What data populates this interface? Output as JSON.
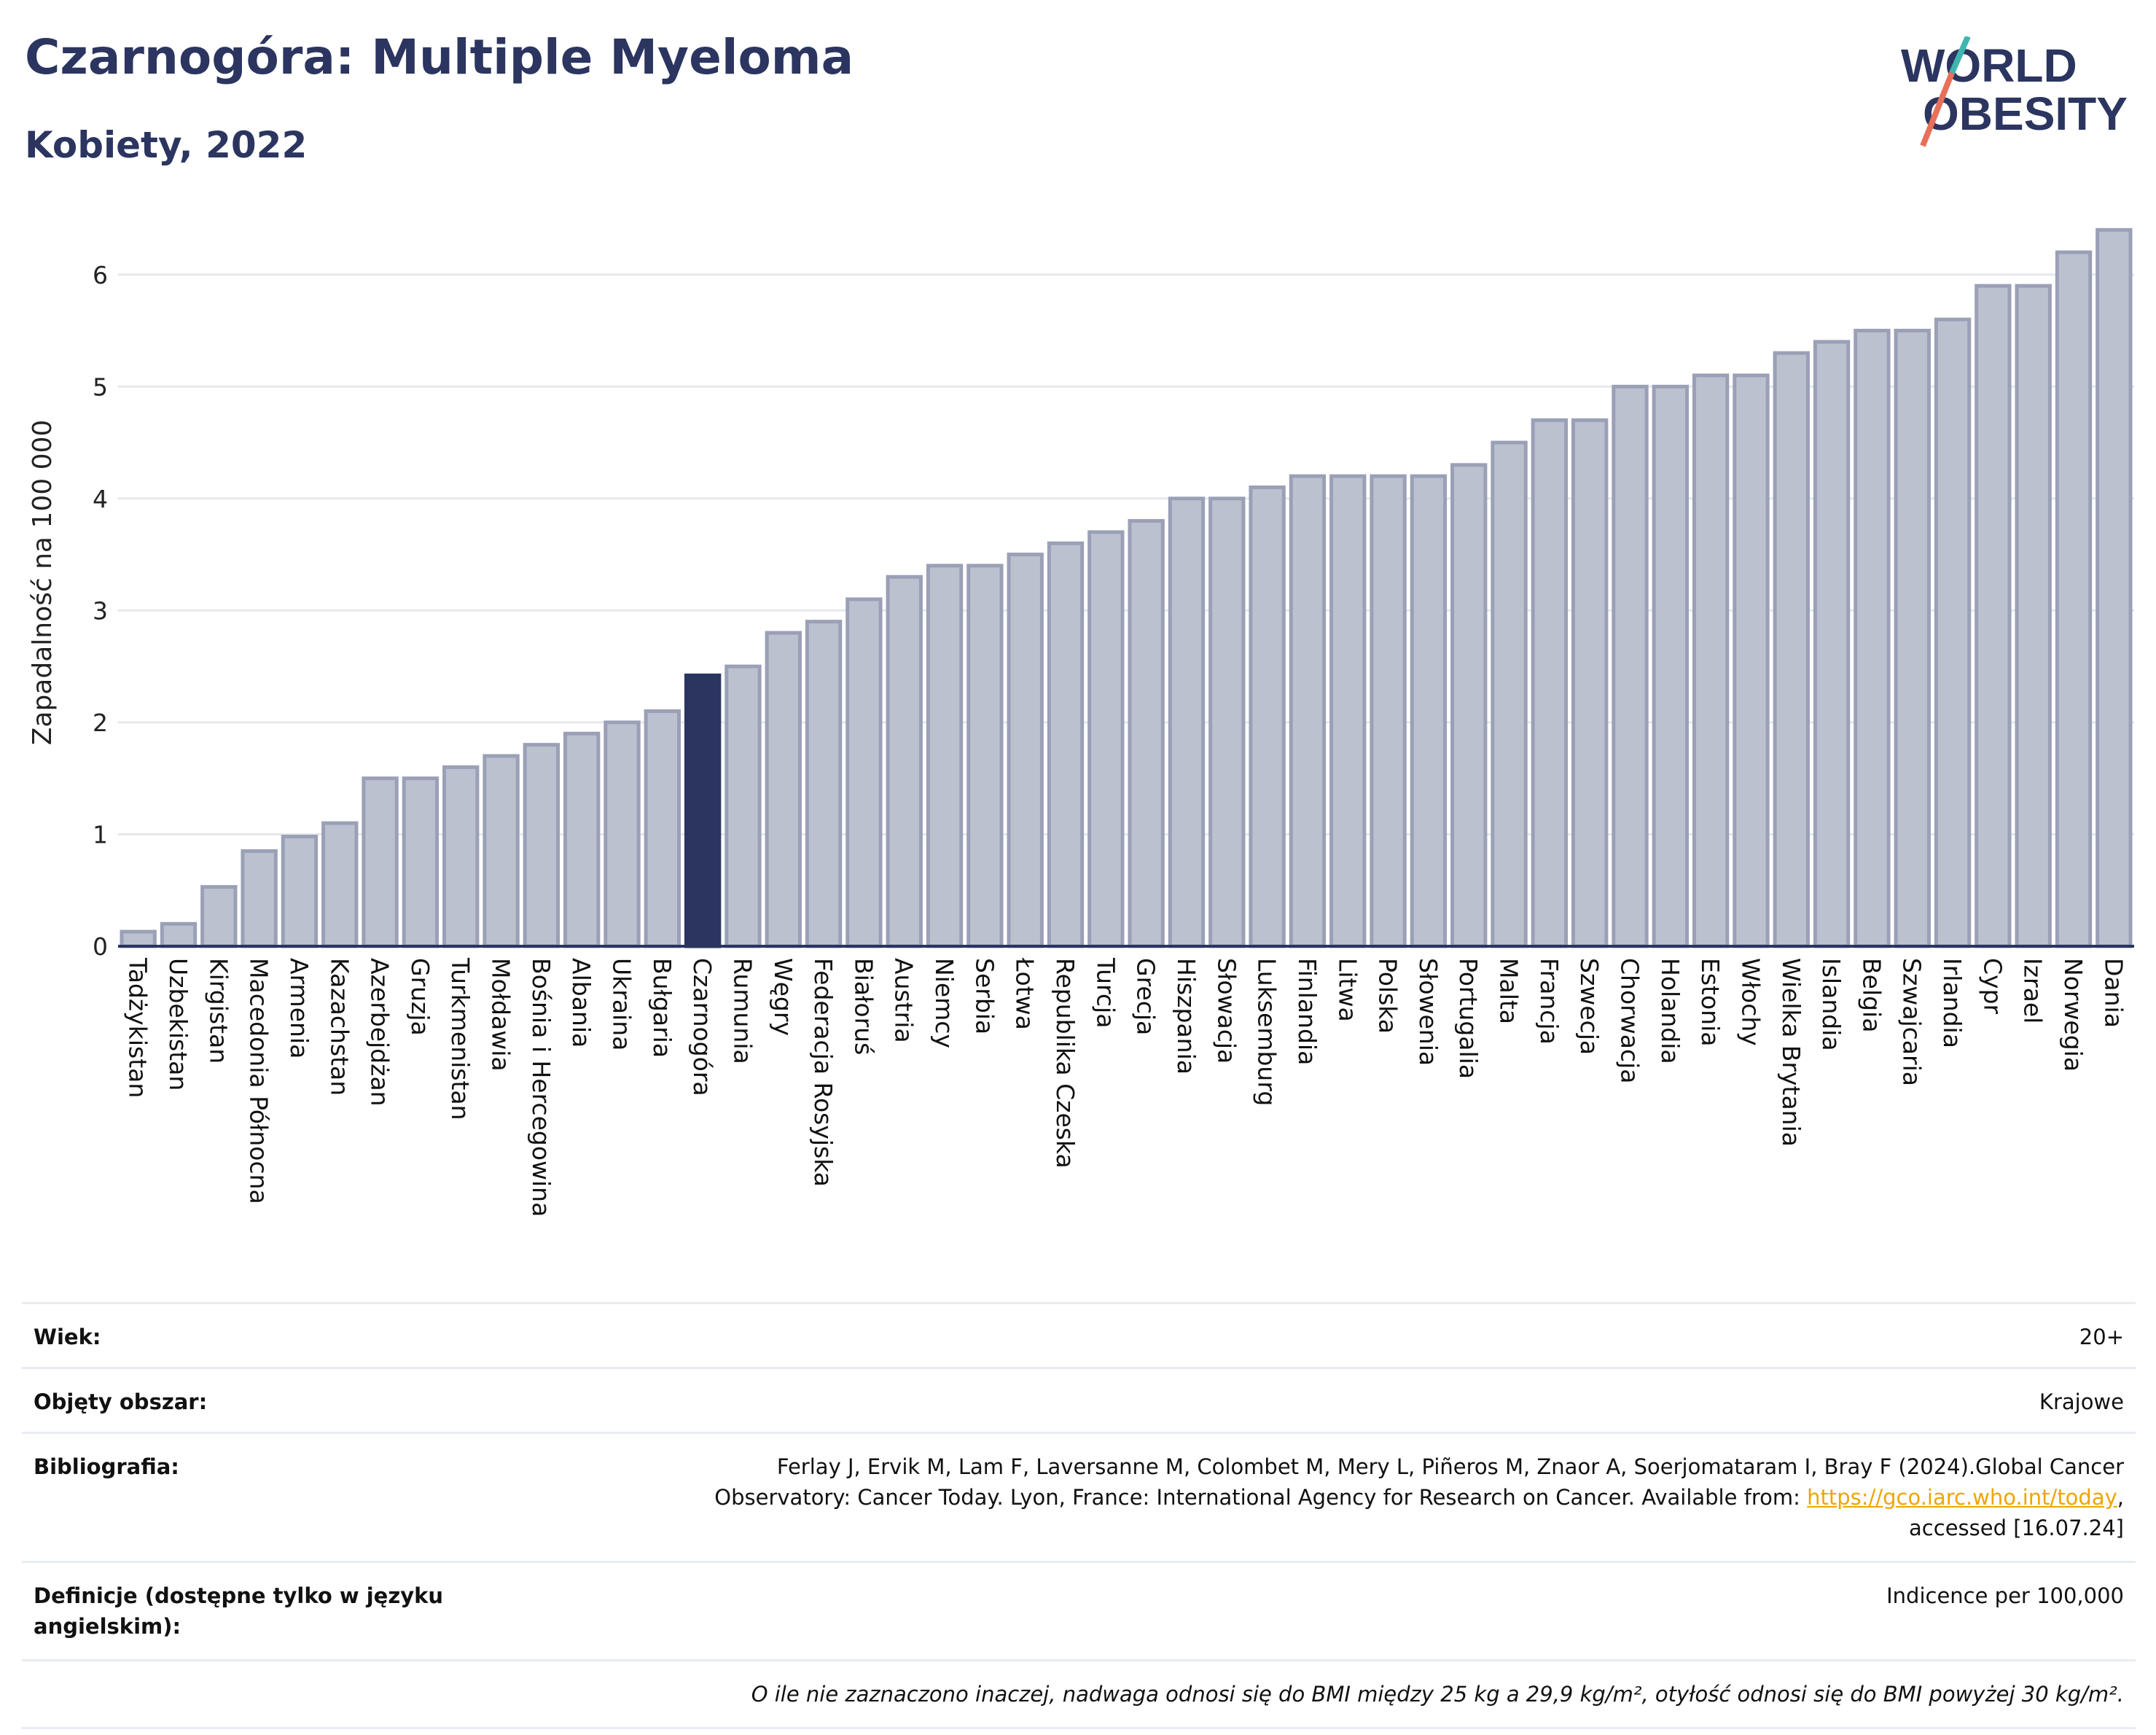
{
  "header": {
    "title": "Czarnogóra: Multiple Myeloma",
    "subtitle": "Kobiety, 2022"
  },
  "logo": {
    "line1": "WORLD",
    "line2": "OBESITY",
    "icon": "world-obesity-logo"
  },
  "colors": {
    "highlight": "#2b3560",
    "bar": "#bcc1d0",
    "bar_stroke": "#9aa0b6",
    "accent": "#2b3560"
  },
  "chart_data": {
    "type": "bar",
    "ylabel": "Zapadalność na 100 000",
    "ylim": [
      0,
      6.5
    ],
    "yticks": [
      0,
      1,
      2,
      3,
      4,
      5,
      6
    ],
    "grid": true,
    "highlight": "Czarnogóra",
    "categories": [
      "Tadżykistan",
      "Uzbekistan",
      "Kirgistan",
      "Macedonia Północna",
      "Armenia",
      "Kazachstan",
      "Azerbejdżan",
      "Gruzja",
      "Turkmenistan",
      "Mołdawia",
      "Bośnia i Hercegowina",
      "Albania",
      "Ukraina",
      "Bułgaria",
      "Czarnogóra",
      "Rumunia",
      "Węgry",
      "Federacja Rosyjska",
      "Białoruś",
      "Austria",
      "Niemcy",
      "Serbia",
      "Łotwa",
      "Republika Czeska",
      "Turcja",
      "Grecja",
      "Hiszpania",
      "Słowacja",
      "Luksemburg",
      "Finlandia",
      "Litwa",
      "Polska",
      "Słowenia",
      "Portugalia",
      "Malta",
      "Francja",
      "Szwecja",
      "Chorwacja",
      "Holandia",
      "Estonia",
      "Włochy",
      "Wielka Brytania",
      "Islandia",
      "Belgia",
      "Szwajcaria",
      "Irlandia",
      "Cypr",
      "Izrael",
      "Norwegia",
      "Dania"
    ],
    "values": [
      0.13,
      0.2,
      0.53,
      0.85,
      0.98,
      1.1,
      1.5,
      1.5,
      1.6,
      1.7,
      1.8,
      1.9,
      2.0,
      2.1,
      2.42,
      2.5,
      2.8,
      2.9,
      3.1,
      3.3,
      3.4,
      3.4,
      3.5,
      3.6,
      3.7,
      3.8,
      4.0,
      4.0,
      4.1,
      4.2,
      4.2,
      4.2,
      4.2,
      4.3,
      4.5,
      4.7,
      4.7,
      5.0,
      5.0,
      5.1,
      5.1,
      5.3,
      5.4,
      5.5,
      5.5,
      5.6,
      5.9,
      5.9,
      6.2,
      6.4
    ]
  },
  "meta": {
    "age_label": "Wiek:",
    "age_value": "20+",
    "area_label": "Objęty obszar:",
    "area_value": "Krajowe",
    "bib_label": "Bibliografia:",
    "bib_line1": "Ferlay J, Ervik M, Lam F, Laversanne M, Colombet M, Mery L, Piñeros M, Znaor A, Soerjomataram I, Bray F (2024).Global Cancer",
    "bib_line2": "Observatory: Cancer Today. Lyon, France: International Agency for Research on Cancer. Available from: ",
    "bib_link": "https://gco.iarc.who.int/today",
    "bib_line2_end": ",",
    "bib_line3": "accessed [16.07.24]",
    "def_label": "Definicje (dostępne tylko w języku angielskim):",
    "def_value": "Indicence per 100,000",
    "footnote": "O ile nie zaznaczono inaczej, nadwaga odnosi się do BMI między 25 kg a 29,9 kg/m², otyłość odnosi się do BMI powyżej 30 kg/m²."
  }
}
